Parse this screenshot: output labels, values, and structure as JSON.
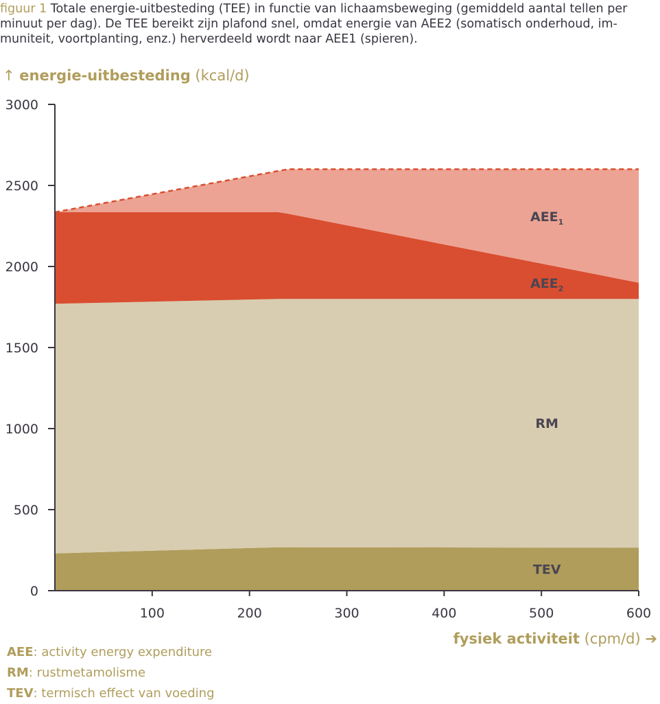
{
  "caption": {
    "prefix": "figuur 1",
    "text": "Totale energie-uitbesteding (TEE) in functie van lichaamsbeweging (gemiddeld aantal tellen per minuut per dag). De TEE bereikt zijn plafond snel, omdat energie van AEE2 (somatisch onderhoud, im­muniteit, voortplanting, enz.) herverdeeld wordt naar AEE1 (spieren)."
  },
  "axes": {
    "y_arrow": "↑",
    "y_label_bold": "energie-uitbesteding",
    "y_label_unit": "(kcal/d)",
    "x_label_bold": "fysiek activiteit",
    "x_label_unit": "(cpm/d)",
    "x_arrow": "➔"
  },
  "legend": [
    {
      "key": "AEE",
      "text": ": activity energy expenditure"
    },
    {
      "key": "RM",
      "text": ": rustmetamolisme"
    },
    {
      "key": "TEV",
      "text": ": termisch effect van voeding"
    }
  ],
  "colors": {
    "TEV": "#b09d5c",
    "RM": "#d8cdb0",
    "AEE2": "#d94e30",
    "AEE1": "#eca394",
    "TEE_line": "#d94e30",
    "axis": "#3a3540",
    "accent_text": "#b09d5c"
  },
  "chart_data": {
    "type": "area",
    "stacked": true,
    "x": [
      0,
      230,
      240,
      600
    ],
    "xlim": [
      0,
      600
    ],
    "ylim": [
      0,
      3000
    ],
    "x_ticks": [
      100,
      200,
      300,
      400,
      500,
      600
    ],
    "y_ticks": [
      0,
      500,
      1000,
      1500,
      2000,
      2500,
      3000
    ],
    "series": [
      {
        "name": "TEV",
        "label": "TEV",
        "values": [
          230,
          268,
          268,
          265
        ]
      },
      {
        "name": "RM",
        "label": "RM",
        "values": [
          1540,
          1532,
          1532,
          1535
        ]
      },
      {
        "name": "AEE2",
        "label": "AEE",
        "sub": "2",
        "values": [
          565,
          535,
          525,
          100
        ]
      },
      {
        "name": "AEE1",
        "label": "AEE",
        "sub": "1",
        "values": [
          0,
          255,
          275,
          700
        ]
      }
    ],
    "total_line": {
      "name": "TEE",
      "style": "dashed",
      "values": [
        2335,
        2590,
        2600,
        2600
      ]
    },
    "grid": false
  }
}
